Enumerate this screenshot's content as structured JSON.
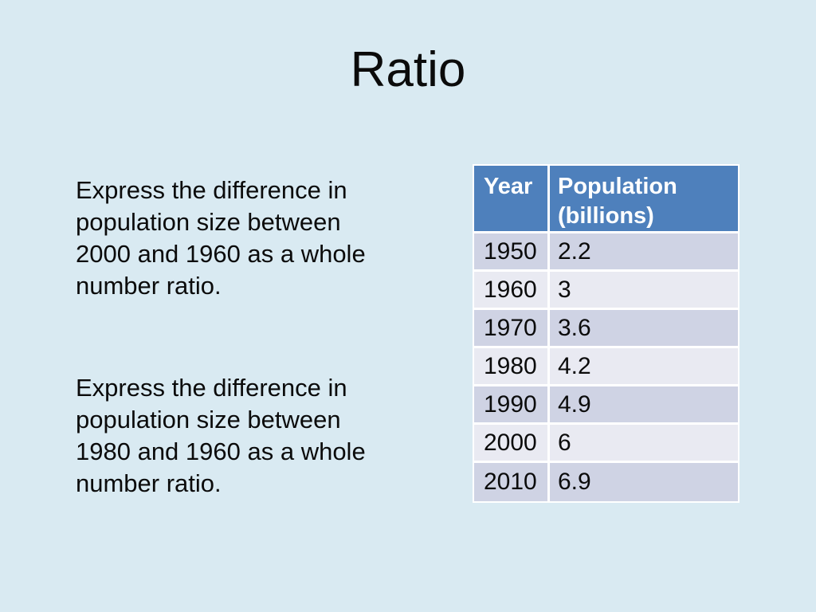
{
  "slide": {
    "title": "Ratio",
    "background_color": "#d9eaf2",
    "text_color": "#0b0b0b"
  },
  "paragraphs": [
    {
      "lines": [
        "Express the difference in",
        "population size between",
        "2000 and 1960 as a whole",
        "number ratio."
      ]
    },
    {
      "lines": [
        "Express the difference in",
        "population size between",
        "1980 and 1960 as a whole",
        "number ratio."
      ]
    }
  ],
  "table": {
    "headers": {
      "year": "Year",
      "population": "Population (billions)"
    },
    "rows": [
      {
        "year": "1950",
        "population": "2.2"
      },
      {
        "year": "1960",
        "population": "3"
      },
      {
        "year": "1970",
        "population": "3.6"
      },
      {
        "year": "1980",
        "population": "4.2"
      },
      {
        "year": "1990",
        "population": "4.9"
      },
      {
        "year": "2000",
        "population": "6"
      },
      {
        "year": "2010",
        "population": "6.9"
      }
    ],
    "colors": {
      "header_bg": "#4e80bc",
      "header_text": "#ffffff",
      "row_dark": "#cfd3e4",
      "row_light": "#e9eaf2",
      "grid": "#ffffff"
    }
  }
}
